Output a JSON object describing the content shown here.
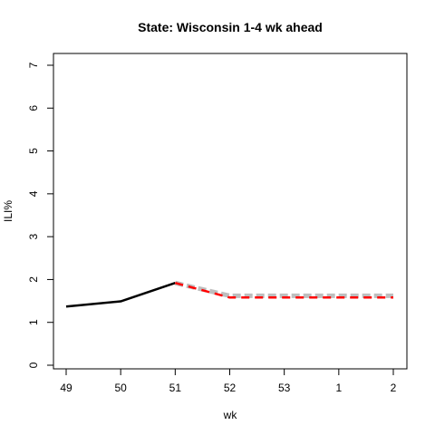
{
  "chart_data": {
    "type": "line",
    "title": "State: Wisconsin 1-4 wk ahead",
    "xlabel": "wk",
    "ylabel": "ILI%",
    "x_ticks": [
      "49",
      "50",
      "51",
      "52",
      "53",
      "1",
      "2"
    ],
    "y_ticks": [
      "0",
      "1",
      "2",
      "3",
      "4",
      "5",
      "6",
      "7"
    ],
    "ylim": [
      0,
      7
    ],
    "grid": false,
    "legend": "none",
    "series": [
      {
        "style": "observed",
        "color": "#000000",
        "dash": "solid",
        "x": [
          "49",
          "50",
          "51"
        ],
        "values": [
          1.37,
          1.49,
          1.92
        ]
      },
      {
        "style": "forecast-band",
        "color": "#bebebe",
        "dash": "dashed",
        "x": [
          "51",
          "52",
          "53",
          "1",
          "2"
        ],
        "values": [
          1.92,
          1.62,
          1.62,
          1.62,
          1.62
        ]
      },
      {
        "style": "forecast",
        "color": "#ff0000",
        "dash": "dashed",
        "x": [
          "51",
          "52",
          "53",
          "1",
          "2"
        ],
        "values": [
          1.92,
          1.58,
          1.58,
          1.58,
          1.58
        ]
      }
    ]
  }
}
